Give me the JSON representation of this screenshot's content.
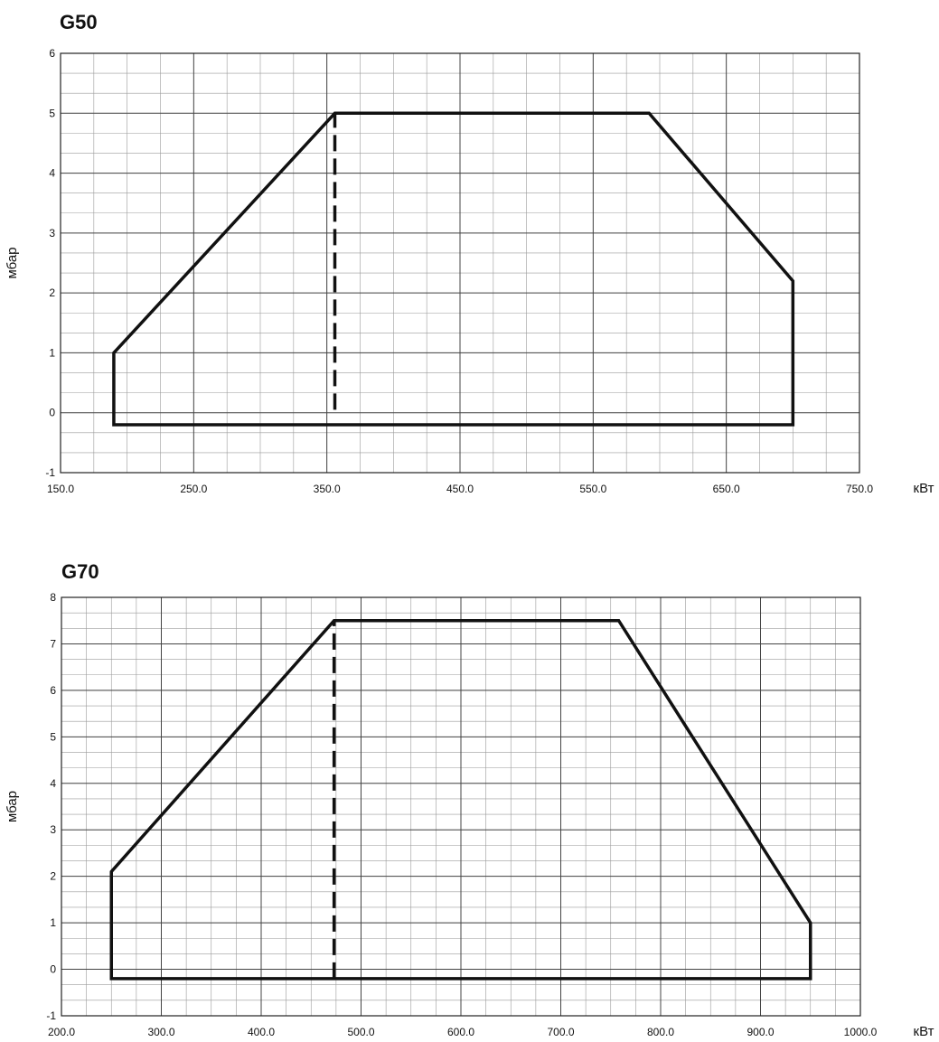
{
  "chart_data": [
    {
      "type": "area",
      "title": "G50",
      "xlabel": "кВт",
      "ylabel": "мбар",
      "xlim": [
        150,
        750
      ],
      "ylim": [
        -1,
        6
      ],
      "x_ticks": [
        "150.0",
        "250.0",
        "350.0",
        "450.0",
        "550.0",
        "650.0",
        "750.0"
      ],
      "y_ticks": [
        "6",
        "5",
        "4",
        "3",
        "2",
        "1",
        "0",
        "-1"
      ],
      "grid": true,
      "series": [
        {
          "points": [
            [
              190,
              -0.2
            ],
            [
              190,
              1.0
            ],
            [
              356,
              5.0
            ],
            [
              592,
              5.0
            ],
            [
              700,
              2.2
            ],
            [
              700,
              -0.2
            ]
          ]
        }
      ],
      "dashed_line": {
        "x": 356,
        "y": [
          0.05,
          5.0
        ]
      }
    },
    {
      "type": "area",
      "title": "G70",
      "xlabel": "кВт",
      "ylabel": "мбар",
      "xlim": [
        200,
        1000
      ],
      "ylim": [
        -1,
        8
      ],
      "x_ticks": [
        "200.0",
        "300.0",
        "400.0",
        "500.0",
        "600.0",
        "700.0",
        "800.0",
        "900.0",
        "1000.0"
      ],
      "y_ticks": [
        "8",
        "7",
        "6",
        "5",
        "4",
        "3",
        "2",
        "1",
        "0",
        "-1"
      ],
      "grid": true,
      "series": [
        {
          "points": [
            [
              250,
              -0.2
            ],
            [
              250,
              2.1
            ],
            [
              473,
              7.5
            ],
            [
              758,
              7.5
            ],
            [
              950,
              1.0
            ],
            [
              950,
              -0.2
            ]
          ]
        }
      ],
      "dashed_line": {
        "x": 473,
        "y": [
          -0.2,
          7.5
        ]
      }
    }
  ]
}
